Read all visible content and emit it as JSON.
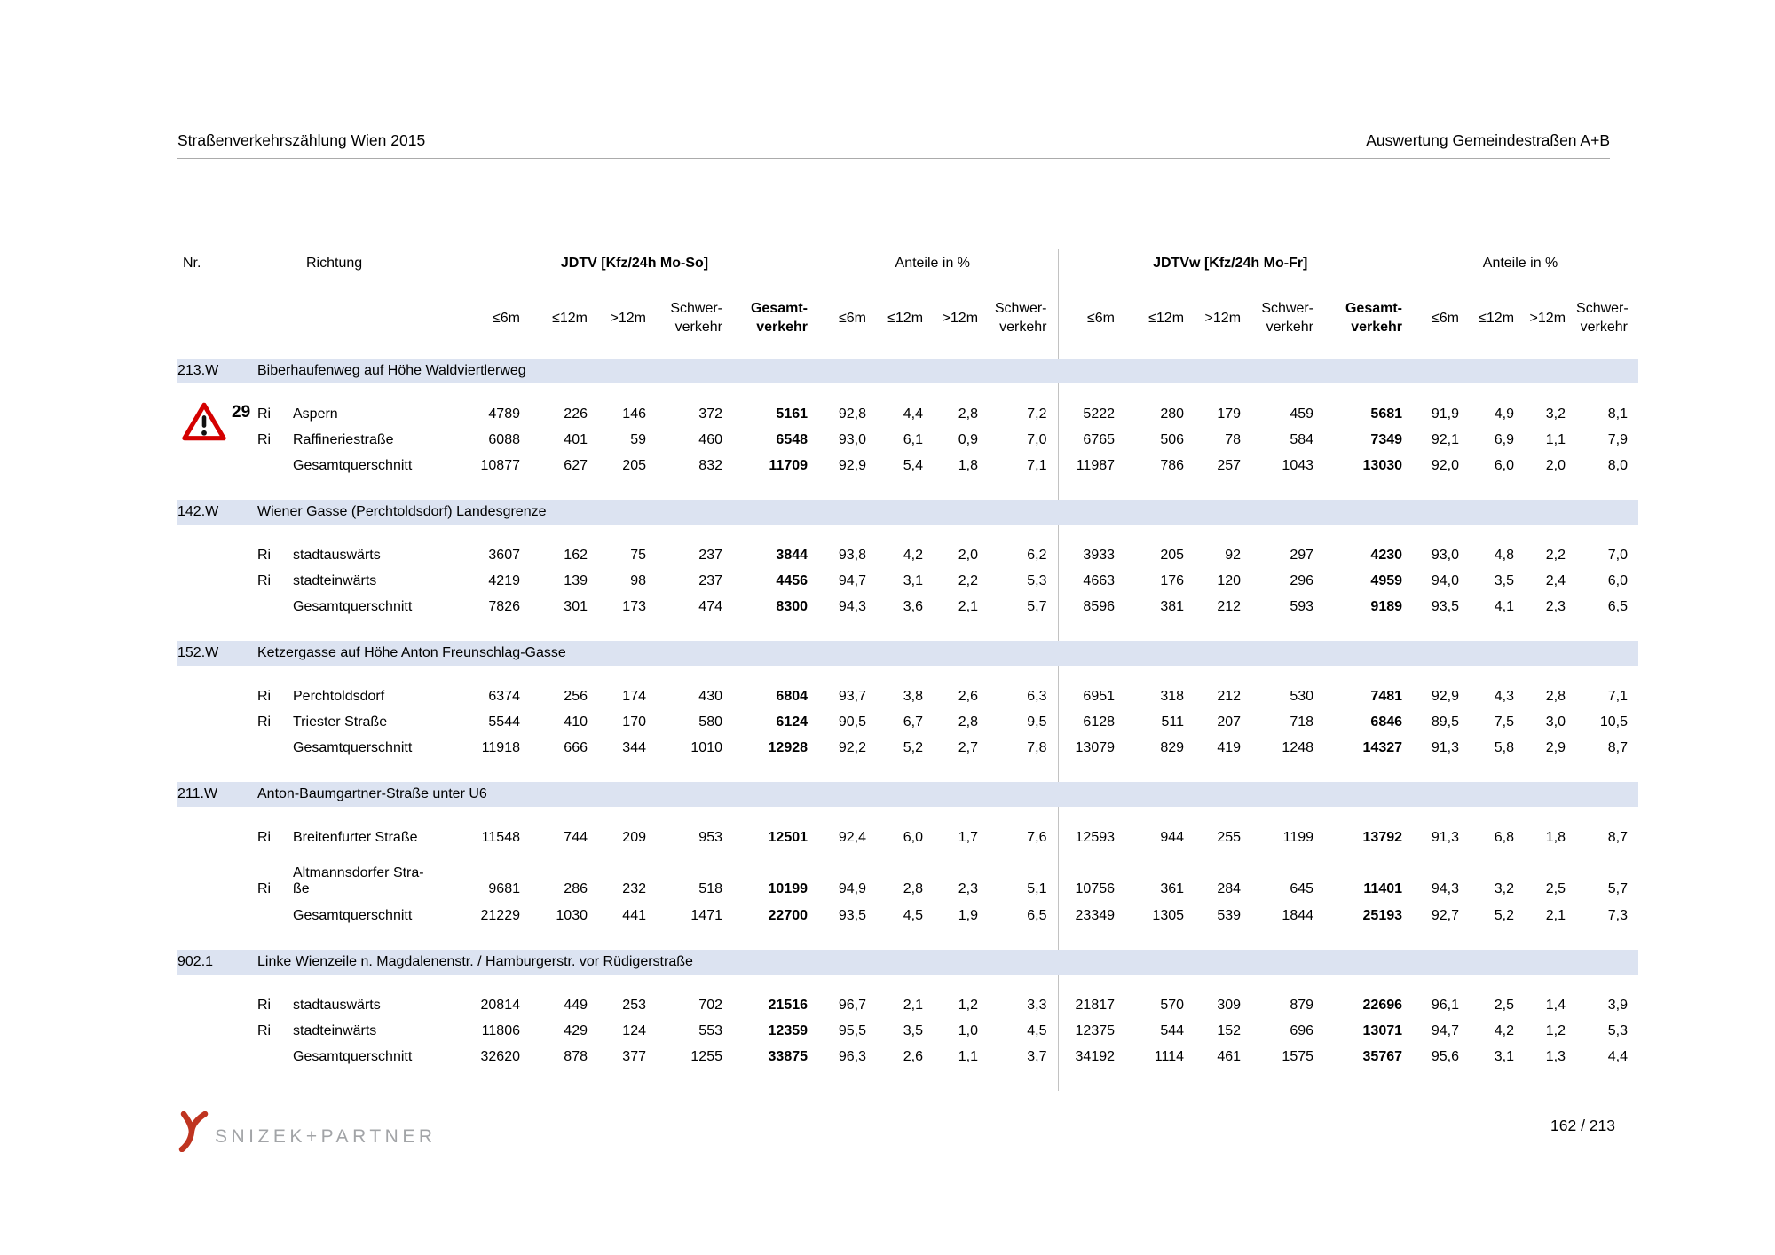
{
  "header": {
    "left": "Straßenverkehrszählung Wien 2015",
    "right": "Auswertung Gemeindestraßen A+B"
  },
  "warning": {
    "number": "29"
  },
  "table": {
    "headers": {
      "nr": "Nr.",
      "richtung": "Richtung",
      "jdtv": "JDTV [Kfz/24h Mo-So]",
      "anteile": "Anteile in %",
      "jdtvw": "JDTVw [Kfz/24h Mo-Fr]"
    },
    "sub_labels": {
      "le6m": "≤6m",
      "le12m": "≤12m",
      "gt12m": ">12m",
      "schwer": [
        "Schwer-",
        "verkehr"
      ],
      "gesamt": [
        "Gesamt-",
        "verkehr"
      ]
    },
    "sections": [
      {
        "nr": "213.W",
        "title": "Biberhaufenweg auf Höhe Waldviertlerweg",
        "has_warning": true,
        "rows": [
          {
            "ri": "Ri",
            "name": "Aspern",
            "values": [
              "4789",
              "226",
              "146",
              "372",
              "5161",
              "92,8",
              "4,4",
              "2,8",
              "7,2",
              "5222",
              "280",
              "179",
              "459",
              "5681",
              "91,9",
              "4,9",
              "3,2",
              "8,1"
            ]
          },
          {
            "ri": "Ri",
            "name": "Raffineriestraße",
            "values": [
              "6088",
              "401",
              "59",
              "460",
              "6548",
              "93,0",
              "6,1",
              "0,9",
              "7,0",
              "6765",
              "506",
              "78",
              "584",
              "7349",
              "92,1",
              "6,9",
              "1,1",
              "7,9"
            ]
          },
          {
            "ri": "",
            "name": "Gesamtquerschnitt",
            "values": [
              "10877",
              "627",
              "205",
              "832",
              "11709",
              "92,9",
              "5,4",
              "1,8",
              "7,1",
              "11987",
              "786",
              "257",
              "1043",
              "13030",
              "92,0",
              "6,0",
              "2,0",
              "8,0"
            ]
          }
        ]
      },
      {
        "nr": "142.W",
        "title": "Wiener Gasse (Perchtoldsdorf) Landesgrenze",
        "rows": [
          {
            "ri": "Ri",
            "name": "stadtauswärts",
            "values": [
              "3607",
              "162",
              "75",
              "237",
              "3844",
              "93,8",
              "4,2",
              "2,0",
              "6,2",
              "3933",
              "205",
              "92",
              "297",
              "4230",
              "93,0",
              "4,8",
              "2,2",
              "7,0"
            ]
          },
          {
            "ri": "Ri",
            "name": "stadteinwärts",
            "values": [
              "4219",
              "139",
              "98",
              "237",
              "4456",
              "94,7",
              "3,1",
              "2,2",
              "5,3",
              "4663",
              "176",
              "120",
              "296",
              "4959",
              "94,0",
              "3,5",
              "2,4",
              "6,0"
            ]
          },
          {
            "ri": "",
            "name": "Gesamtquerschnitt",
            "values": [
              "7826",
              "301",
              "173",
              "474",
              "8300",
              "94,3",
              "3,6",
              "2,1",
              "5,7",
              "8596",
              "381",
              "212",
              "593",
              "9189",
              "93,5",
              "4,1",
              "2,3",
              "6,5"
            ]
          }
        ]
      },
      {
        "nr": "152.W",
        "title": "Ketzergasse auf Höhe Anton Freunschlag-Gasse",
        "rows": [
          {
            "ri": "Ri",
            "name": "Perchtoldsdorf",
            "values": [
              "6374",
              "256",
              "174",
              "430",
              "6804",
              "93,7",
              "3,8",
              "2,6",
              "6,3",
              "6951",
              "318",
              "212",
              "530",
              "7481",
              "92,9",
              "4,3",
              "2,8",
              "7,1"
            ]
          },
          {
            "ri": "Ri",
            "name": "Triester Straße",
            "values": [
              "5544",
              "410",
              "170",
              "580",
              "6124",
              "90,5",
              "6,7",
              "2,8",
              "9,5",
              "6128",
              "511",
              "207",
              "718",
              "6846",
              "89,5",
              "7,5",
              "3,0",
              "10,5"
            ]
          },
          {
            "ri": "",
            "name": "Gesamtquerschnitt",
            "values": [
              "11918",
              "666",
              "344",
              "1010",
              "12928",
              "92,2",
              "5,2",
              "2,7",
              "7,8",
              "13079",
              "829",
              "419",
              "1248",
              "14327",
              "91,3",
              "5,8",
              "2,9",
              "8,7"
            ]
          }
        ]
      },
      {
        "nr": "211.W",
        "title": "Anton-Baumgartner-Straße unter U6",
        "rows": [
          {
            "ri": "Ri",
            "name": "Breitenfurter Straße",
            "values": [
              "11548",
              "744",
              "209",
              "953",
              "12501",
              "92,4",
              "6,0",
              "1,7",
              "7,6",
              "12593",
              "944",
              "255",
              "1199",
              "13792",
              "91,3",
              "6,8",
              "1,8",
              "8,7"
            ]
          },
          {
            "ri": "Ri",
            "name": "ße",
            "name_top": "Altmannsdorfer Stra-",
            "values": [
              "9681",
              "286",
              "232",
              "518",
              "10199",
              "94,9",
              "2,8",
              "2,3",
              "5,1",
              "10756",
              "361",
              "284",
              "645",
              "11401",
              "94,3",
              "3,2",
              "2,5",
              "5,7"
            ]
          },
          {
            "ri": "",
            "name": "Gesamtquerschnitt",
            "values": [
              "21229",
              "1030",
              "441",
              "1471",
              "22700",
              "93,5",
              "4,5",
              "1,9",
              "6,5",
              "23349",
              "1305",
              "539",
              "1844",
              "25193",
              "92,7",
              "5,2",
              "2,1",
              "7,3"
            ]
          }
        ]
      },
      {
        "nr": "902.1",
        "title": "Linke Wienzeile n. Magdalenenstr. / Hamburgerstr. vor Rüdigerstraße",
        "rows": [
          {
            "ri": "Ri",
            "name": "stadtauswärts",
            "values": [
              "20814",
              "449",
              "253",
              "702",
              "21516",
              "96,7",
              "2,1",
              "1,2",
              "3,3",
              "21817",
              "570",
              "309",
              "879",
              "22696",
              "96,1",
              "2,5",
              "1,4",
              "3,9"
            ]
          },
          {
            "ri": "Ri",
            "name": "stadteinwärts",
            "values": [
              "11806",
              "429",
              "124",
              "553",
              "12359",
              "95,5",
              "3,5",
              "1,0",
              "4,5",
              "12375",
              "544",
              "152",
              "696",
              "13071",
              "94,7",
              "4,2",
              "1,2",
              "5,3"
            ]
          },
          {
            "ri": "",
            "name": "Gesamtquerschnitt",
            "values": [
              "32620",
              "878",
              "377",
              "1255",
              "33875",
              "96,3",
              "2,6",
              "1,1",
              "3,7",
              "34192",
              "1114",
              "461",
              "1575",
              "35767",
              "95,6",
              "3,1",
              "1,3",
              "4,4"
            ]
          }
        ]
      }
    ]
  },
  "footer": {
    "logo_text": "SNIZEK+PARTNER",
    "page": "162 / 213"
  }
}
